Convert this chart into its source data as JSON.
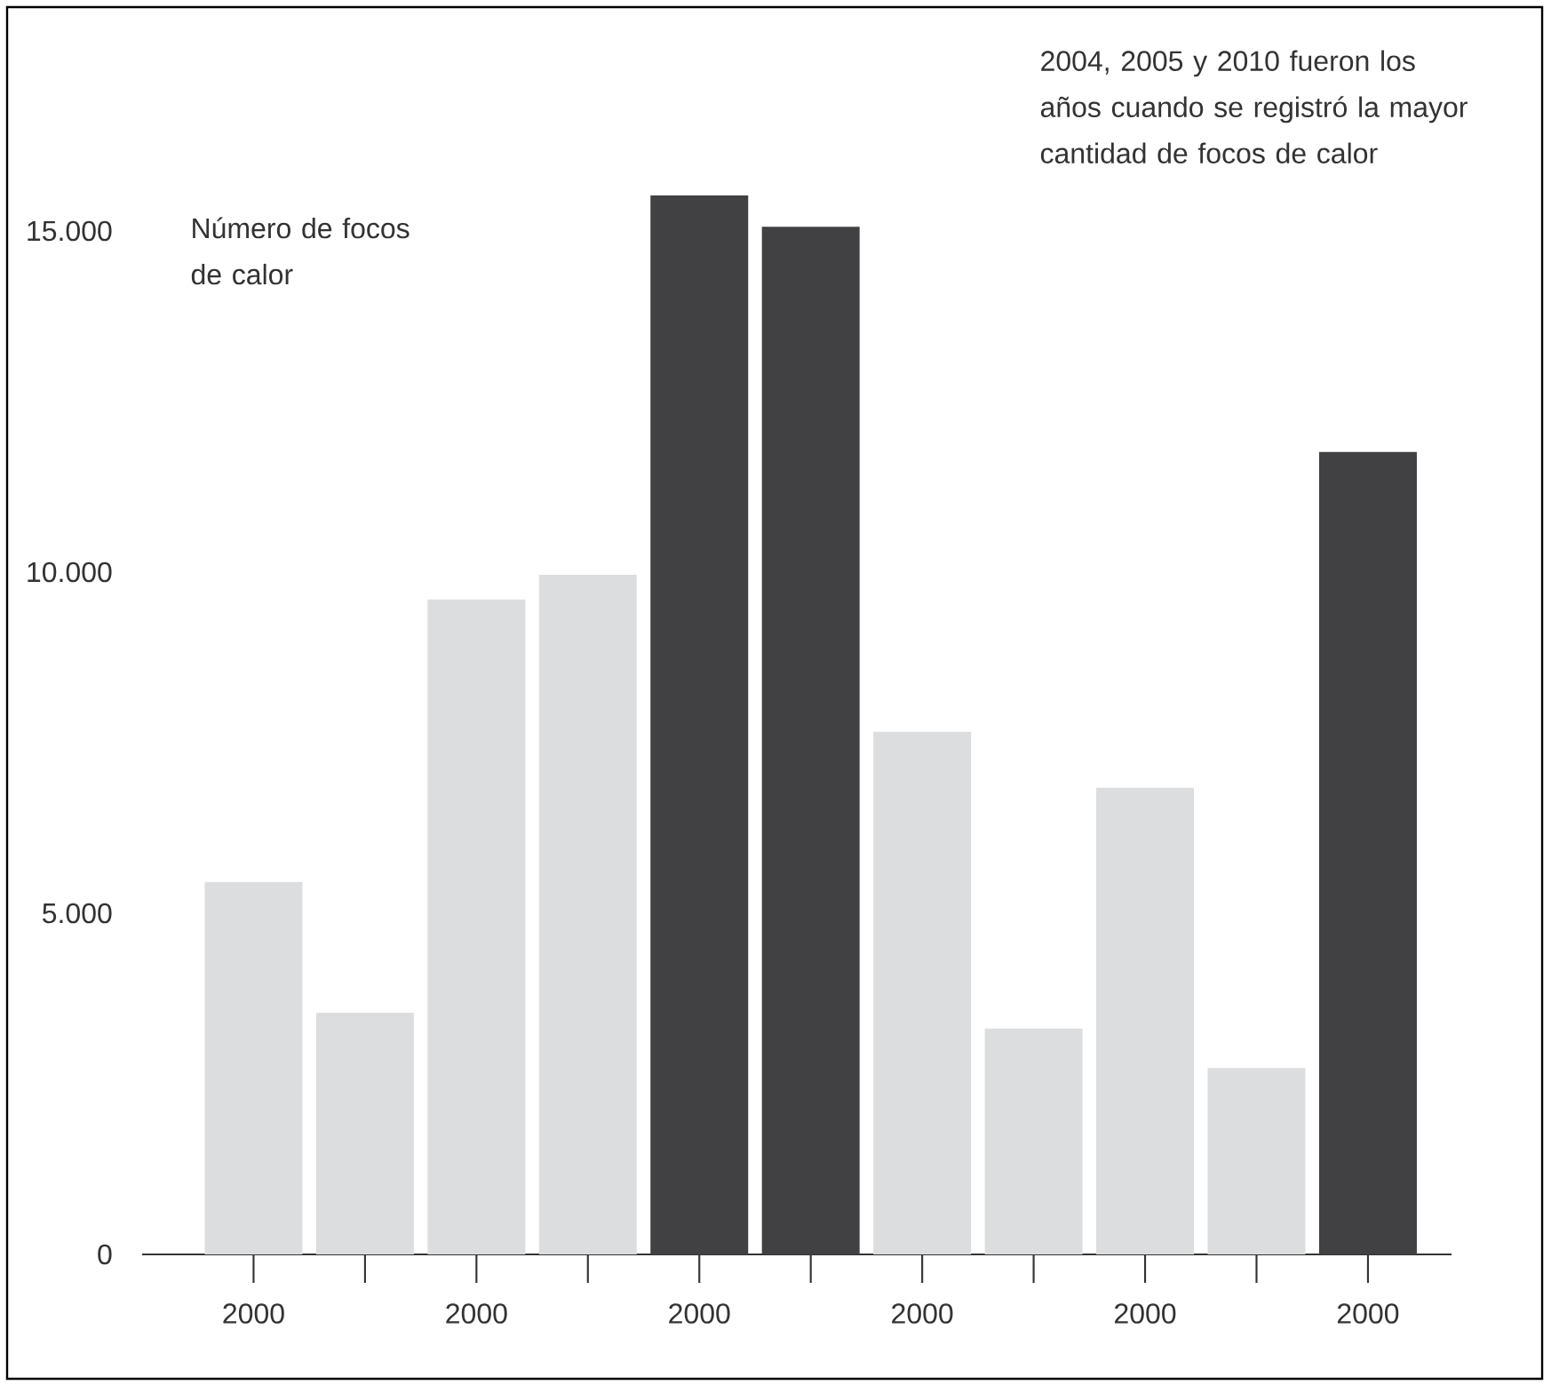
{
  "chart_data": {
    "type": "bar",
    "ylabel": "Número de focos de calor",
    "annotations": [
      "2004, 2005 y 2010 fueron los años cuando se registró la mayor cantidad de focos de calor"
    ],
    "categories": [
      "2000",
      null,
      "2000",
      null,
      "2000",
      null,
      "2000",
      null,
      "2000",
      null,
      "2000"
    ],
    "values": [
      5460,
      3540,
      9600,
      9960,
      15520,
      15060,
      7660,
      3310,
      6840,
      2730,
      11760
    ],
    "colors": [
      "#dcdddf",
      "#dcdddf",
      "#dcdddf",
      "#dcdddf",
      "#414143",
      "#414143",
      "#dcdddf",
      "#dcdddf",
      "#dcdddf",
      "#dcdddf",
      "#414143"
    ],
    "ylim": [
      0,
      15520
    ],
    "yticks": [
      0,
      {
        "value": 5000,
        "label": "5.000"
      },
      {
        "value": 10000,
        "label": "10.000"
      },
      {
        "value": 15000,
        "label": "15.000"
      }
    ]
  }
}
